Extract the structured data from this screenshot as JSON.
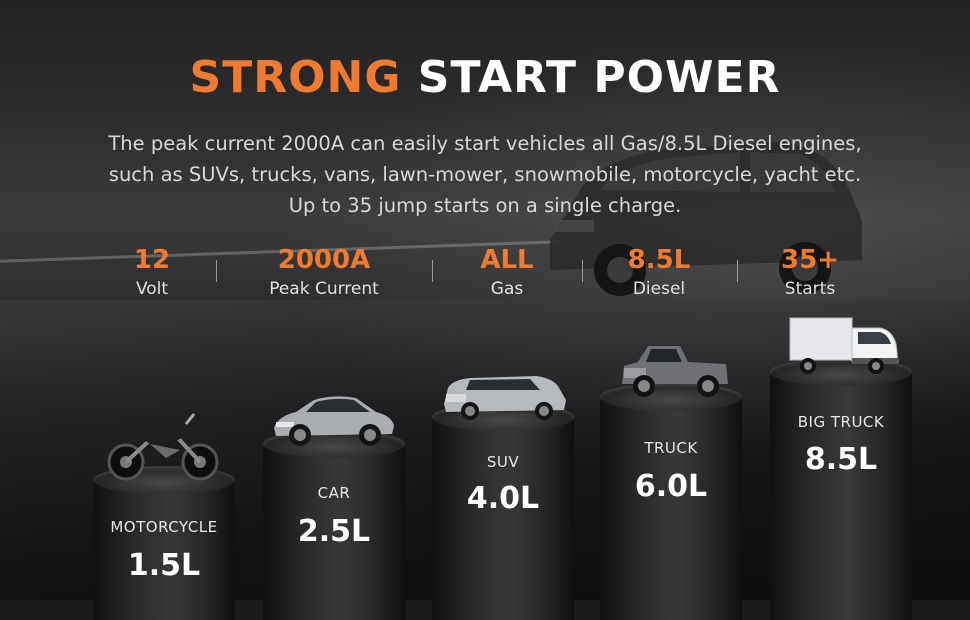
{
  "headline": {
    "accent": "STRONG",
    "rest": " START POWER"
  },
  "description": [
    "The peak current 2000A  can easily start vehicles all Gas/8.5L Diesel engines,",
    "such as SUVs, trucks, vans, lawn-mower, snowmobile, motorcycle, yacht etc.",
    "Up to 35 jump starts on a single charge."
  ],
  "stats": [
    {
      "value": "12",
      "label": "Volt"
    },
    {
      "value": "2000A",
      "label": "Peak Current"
    },
    {
      "value": "ALL",
      "label": "Gas"
    },
    {
      "value": "8.5L",
      "label": "Diesel"
    },
    {
      "value": "35+",
      "label": "Starts"
    }
  ],
  "vehicles": [
    {
      "name": "MOTORCYCLE",
      "size": "1.5L",
      "icon": "motorcycle-icon"
    },
    {
      "name": "CAR",
      "size": "2.5L",
      "icon": "car-icon"
    },
    {
      "name": "SUV",
      "size": "4.0L",
      "icon": "suv-icon"
    },
    {
      "name": "TRUCK",
      "size": "6.0L",
      "icon": "pickup-truck-icon"
    },
    {
      "name": "BIG TRUCK",
      "size": "8.5L",
      "icon": "box-truck-icon"
    }
  ],
  "colors": {
    "accent": "#f07a30",
    "text": "#ffffff",
    "muted": "#d8d8d8"
  }
}
